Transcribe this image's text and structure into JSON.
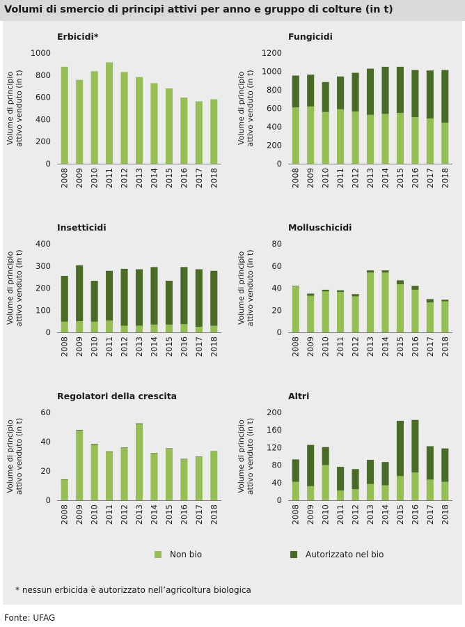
{
  "title": "Volumi di smercio di principi attivi per anno e gruppo di colture (in t)",
  "y_axis_label_line1": "Volume di principio",
  "y_axis_label_line2": "attivo venduto (in t)",
  "colors": {
    "non_bio": "#95bf54",
    "bio": "#4a6b25",
    "panel": "#ececec",
    "title_bar": "#d9d9d9",
    "axis": "#808080"
  },
  "legend": {
    "non_bio": "Non bio",
    "bio": "Autorizzato nel bio"
  },
  "footnote": "* nessun erbicida è autorizzato nell’agricoltura biologica",
  "source": "Fonte: UFAG",
  "chart_data": [
    {
      "type": "bar",
      "stacked": true,
      "title": "Erbicidi*",
      "categories": [
        "2008",
        "2009",
        "2010",
        "2011",
        "2012",
        "2013",
        "2014",
        "2015",
        "2016",
        "2017",
        "2018"
      ],
      "ylim": [
        0,
        1000
      ],
      "yticks": [
        0,
        200,
        400,
        600,
        800,
        1000
      ],
      "series": [
        {
          "name": "Non bio",
          "values": [
            875,
            757,
            835,
            915,
            828,
            783,
            727,
            680,
            597,
            563,
            582
          ]
        },
        {
          "name": "Autorizzato nel bio",
          "values": [
            0,
            0,
            0,
            0,
            0,
            0,
            0,
            0,
            0,
            0,
            0
          ]
        }
      ]
    },
    {
      "type": "bar",
      "stacked": true,
      "title": "Fungicidi",
      "categories": [
        "2008",
        "2009",
        "2010",
        "2011",
        "2012",
        "2013",
        "2014",
        "2015",
        "2016",
        "2017",
        "2018"
      ],
      "ylim": [
        0,
        1200
      ],
      "yticks": [
        0,
        200,
        400,
        600,
        800,
        1000,
        1200
      ],
      "series": [
        {
          "name": "Non bio",
          "values": [
            610,
            620,
            560,
            590,
            565,
            530,
            540,
            550,
            505,
            490,
            445
          ]
        },
        {
          "name": "Autorizzato nel bio",
          "values": [
            345,
            345,
            325,
            355,
            420,
            500,
            510,
            500,
            510,
            520,
            570
          ]
        }
      ]
    },
    {
      "type": "bar",
      "stacked": true,
      "title": "Insetticidi",
      "categories": [
        "2008",
        "2009",
        "2010",
        "2011",
        "2012",
        "2013",
        "2014",
        "2015",
        "2016",
        "2017",
        "2018"
      ],
      "ylim": [
        0,
        400
      ],
      "yticks": [
        0,
        100,
        200,
        300,
        400
      ],
      "series": [
        {
          "name": "Non bio",
          "values": [
            48,
            50,
            48,
            53,
            30,
            30,
            35,
            35,
            37,
            25,
            30
          ]
        },
        {
          "name": "Autorizzato nel bio",
          "values": [
            207,
            253,
            185,
            225,
            257,
            255,
            260,
            198,
            258,
            260,
            248
          ]
        }
      ]
    },
    {
      "type": "bar",
      "stacked": true,
      "title": "Molluschicidi",
      "categories": [
        "2008",
        "2009",
        "2010",
        "2011",
        "2012",
        "2013",
        "2014",
        "2015",
        "2016",
        "2017",
        "2018"
      ],
      "ylim": [
        0,
        80
      ],
      "yticks": [
        0,
        20,
        40,
        60,
        80
      ],
      "series": [
        {
          "name": "Non bio",
          "values": [
            41.5,
            33,
            37,
            36.5,
            32.5,
            54,
            54,
            43.5,
            38.5,
            27,
            28
          ]
        },
        {
          "name": "Autorizzato nel bio",
          "values": [
            0.5,
            2,
            1.5,
            1.5,
            2,
            2,
            2,
            3.5,
            3.5,
            3,
            1.5
          ]
        }
      ]
    },
    {
      "type": "bar",
      "stacked": true,
      "title": "Regolatori della crescita",
      "categories": [
        "2008",
        "2009",
        "2010",
        "2011",
        "2012",
        "2013",
        "2014",
        "2015",
        "2016",
        "2017",
        "2018"
      ],
      "ylim": [
        0,
        60
      ],
      "yticks": [
        0,
        20,
        40,
        60
      ],
      "series": [
        {
          "name": "Non bio",
          "values": [
            14,
            47.5,
            38,
            33,
            35.8,
            52,
            32,
            35.2,
            28,
            29.5,
            33.2
          ]
        },
        {
          "name": "Autorizzato nel bio",
          "values": [
            0.3,
            0.5,
            0.5,
            0.3,
            0.3,
            0.5,
            0.3,
            0.3,
            0.3,
            0.3,
            0.3
          ]
        }
      ]
    },
    {
      "type": "bar",
      "stacked": true,
      "title": "Altri",
      "categories": [
        "2008",
        "2009",
        "2010",
        "2011",
        "2012",
        "2013",
        "2014",
        "2015",
        "2016",
        "2017",
        "2018"
      ],
      "ylim": [
        0,
        200
      ],
      "yticks": [
        0,
        40,
        80,
        120,
        160,
        200
      ],
      "series": [
        {
          "name": "Non bio",
          "values": [
            42,
            32,
            80,
            22,
            25,
            37,
            34,
            55,
            63,
            47,
            42
          ]
        },
        {
          "name": "Autorizzato nel bio",
          "values": [
            51,
            94,
            41,
            54,
            46,
            55,
            53,
            126,
            120,
            76,
            76
          ]
        }
      ]
    }
  ]
}
